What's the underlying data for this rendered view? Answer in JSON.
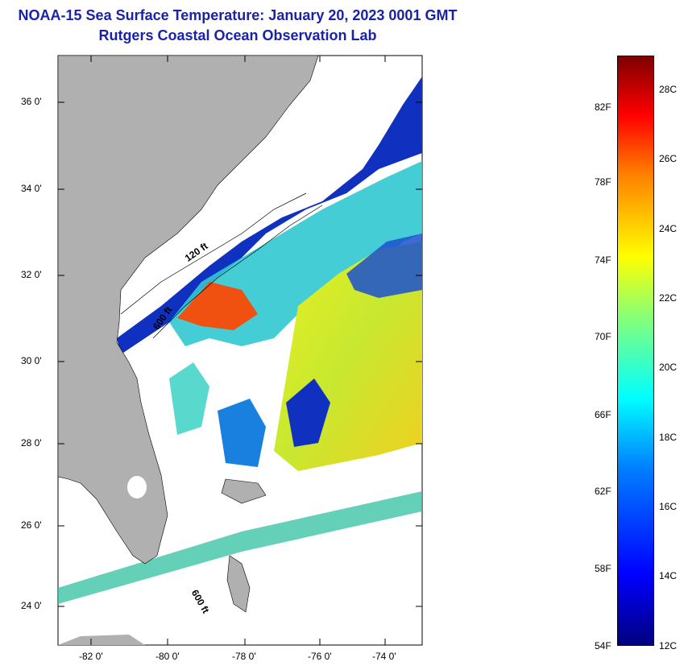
{
  "title": "NOAA-15 Sea Surface Temperature:  January 20, 2023 0001 GMT",
  "subtitle": "Rutgers Coastal Ocean Observation Lab",
  "map": {
    "lat_labels": [
      "36 0'",
      "34 0'",
      "32 0'",
      "30 0'",
      "28 0'",
      "26 0'",
      "24 0'"
    ],
    "lon_labels": [
      "-82 0'",
      "-80 0'",
      "-78 0'",
      "-76 0'",
      "-74 0'"
    ],
    "isobath_labels": [
      "120 ft",
      "600 ft",
      "600 ft"
    ],
    "colors": {
      "land": "#b0b0b0",
      "cloud": "#ffffff",
      "cold": "#1030c0",
      "cool": "#1a80e0",
      "mid": "#30d0c0",
      "warm": "#e8f020",
      "hot": "#f05010"
    }
  },
  "colorbar": {
    "fahrenheit_labels": [
      "82F",
      "78F",
      "74F",
      "70F",
      "66F",
      "62F",
      "58F",
      "54F"
    ],
    "celsius_labels": [
      "28C",
      "26C",
      "24C",
      "22C",
      "20C",
      "18C",
      "16C",
      "14C",
      "12C"
    ],
    "range_c": [
      12,
      29
    ]
  }
}
